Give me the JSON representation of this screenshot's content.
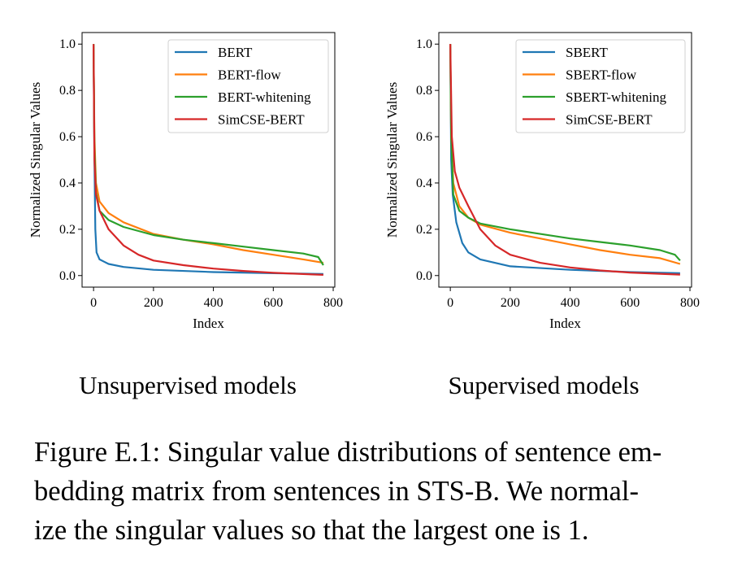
{
  "chart_data": [
    {
      "type": "line",
      "title": "",
      "xlabel": "Index",
      "ylabel": "Normalized Singular Values",
      "xlim": [
        -38.35,
        805.35
      ],
      "ylim": [
        -0.05,
        1.05
      ],
      "xticks": [
        "0",
        "200",
        "400",
        "600",
        "800"
      ],
      "yticks": [
        "0.0",
        "0.2",
        "0.4",
        "0.6",
        "0.8",
        "1.0"
      ],
      "grid": false,
      "legend_placement": "top-right",
      "series": [
        {
          "name": "BERT",
          "color": "#1f77b4",
          "x": [
            0,
            3,
            6,
            10,
            20,
            50,
            100,
            200,
            400,
            600,
            767
          ],
          "y": [
            1,
            0.5,
            0.2,
            0.1,
            0.07,
            0.05,
            0.037,
            0.025,
            0.015,
            0.01,
            0.007
          ]
        },
        {
          "name": "BERT-flow",
          "color": "#ff7f0e",
          "x": [
            0,
            3,
            8,
            20,
            50,
            100,
            200,
            300,
            400,
            500,
            600,
            700,
            767
          ],
          "y": [
            1,
            0.6,
            0.4,
            0.32,
            0.27,
            0.23,
            0.18,
            0.155,
            0.135,
            0.11,
            0.09,
            0.07,
            0.055
          ]
        },
        {
          "name": "BERT-whitening",
          "color": "#2ca02c",
          "x": [
            0,
            3,
            8,
            20,
            50,
            100,
            200,
            300,
            400,
            500,
            600,
            700,
            750,
            767
          ],
          "y": [
            1,
            0.55,
            0.36,
            0.28,
            0.24,
            0.21,
            0.175,
            0.155,
            0.14,
            0.125,
            0.11,
            0.095,
            0.08,
            0.045
          ]
        },
        {
          "name": "SimCSE-BERT",
          "color": "#d62728",
          "x": [
            0,
            3,
            8,
            20,
            50,
            100,
            150,
            200,
            300,
            400,
            500,
            600,
            767
          ],
          "y": [
            1,
            0.5,
            0.35,
            0.28,
            0.2,
            0.13,
            0.09,
            0.065,
            0.045,
            0.03,
            0.02,
            0.012,
            0.003
          ]
        }
      ]
    },
    {
      "type": "line",
      "title": "",
      "xlabel": "Index",
      "ylabel": "Normalized Singular Values",
      "xlim": [
        -38.35,
        805.35
      ],
      "ylim": [
        -0.05,
        1.05
      ],
      "xticks": [
        "0",
        "200",
        "400",
        "600",
        "800"
      ],
      "yticks": [
        "0.0",
        "0.2",
        "0.4",
        "0.6",
        "0.8",
        "1.0"
      ],
      "grid": false,
      "legend_placement": "top-right",
      "series": [
        {
          "name": "SBERT",
          "color": "#1f77b4",
          "x": [
            0,
            3,
            8,
            20,
            40,
            60,
            100,
            200,
            400,
            600,
            767
          ],
          "y": [
            1,
            0.5,
            0.35,
            0.23,
            0.14,
            0.1,
            0.07,
            0.04,
            0.025,
            0.015,
            0.01
          ]
        },
        {
          "name": "SBERT-flow",
          "color": "#ff7f0e",
          "x": [
            0,
            3,
            10,
            30,
            60,
            100,
            200,
            300,
            400,
            500,
            600,
            700,
            767
          ],
          "y": [
            1,
            0.6,
            0.4,
            0.3,
            0.25,
            0.22,
            0.185,
            0.16,
            0.135,
            0.11,
            0.09,
            0.075,
            0.05
          ]
        },
        {
          "name": "SBERT-whitening",
          "color": "#2ca02c",
          "x": [
            0,
            3,
            10,
            30,
            60,
            100,
            200,
            300,
            400,
            500,
            600,
            700,
            750,
            767
          ],
          "y": [
            1,
            0.6,
            0.35,
            0.28,
            0.25,
            0.225,
            0.2,
            0.18,
            0.16,
            0.145,
            0.13,
            0.11,
            0.09,
            0.065
          ]
        },
        {
          "name": "SimCSE-BERT",
          "color": "#d62728",
          "x": [
            0,
            5,
            15,
            30,
            60,
            100,
            150,
            200,
            300,
            400,
            500,
            600,
            767
          ],
          "y": [
            1,
            0.6,
            0.45,
            0.38,
            0.3,
            0.2,
            0.13,
            0.09,
            0.055,
            0.035,
            0.022,
            0.013,
            0.004
          ]
        }
      ]
    }
  ],
  "subtitles": [
    "Unsupervised models",
    "Supervised models"
  ],
  "caption": [
    "Figure E.1: Singular value distributions of sentence em-",
    "bedding matrix from sentences in STS-B. We normal-",
    "ize the singular values so that the largest one is 1."
  ]
}
